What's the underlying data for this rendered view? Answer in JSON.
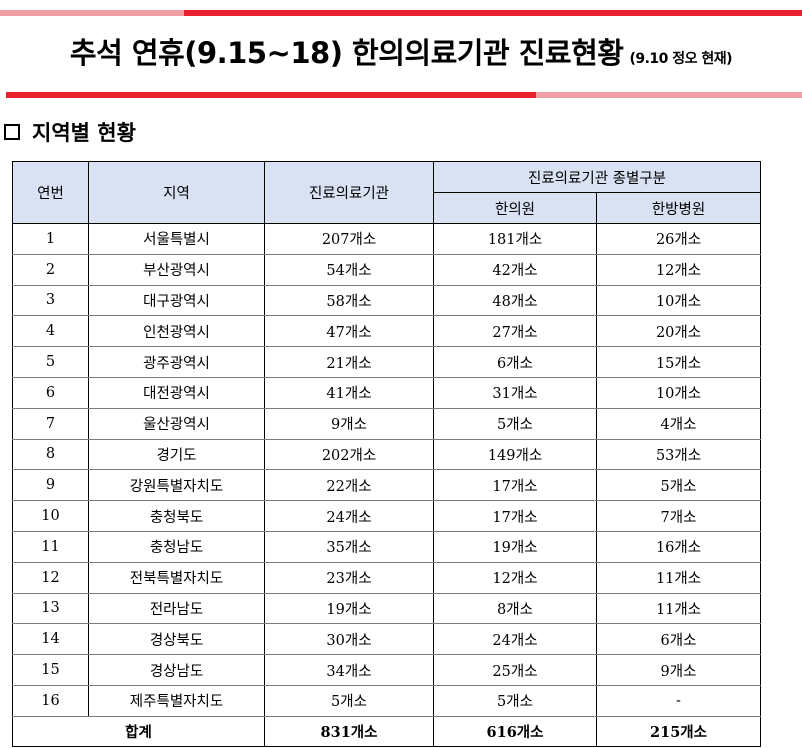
{
  "header": {
    "title": "추석 연휴(9.15~18) 한의의료기관 진료현황",
    "subtitle": "(9.10 정오 현재)",
    "accent_color": "#e8212f",
    "accent_light_color": "#f0a0a5"
  },
  "section": {
    "bullet_icon": "square-outline-icon",
    "heading": "지역별 현황"
  },
  "table": {
    "header_bg": "#d9e2f2",
    "columns": {
      "no": "연번",
      "region": "지역",
      "institutions": "진료의료기관",
      "group": "진료의료기관 종별구분",
      "clinic": "한의원",
      "hospital": "한방병원"
    },
    "rows": [
      {
        "no": "1",
        "region": "서울특별시",
        "institutions": "207개소",
        "clinic": "181개소",
        "hospital": "26개소"
      },
      {
        "no": "2",
        "region": "부산광역시",
        "institutions": "54개소",
        "clinic": "42개소",
        "hospital": "12개소"
      },
      {
        "no": "3",
        "region": "대구광역시",
        "institutions": "58개소",
        "clinic": "48개소",
        "hospital": "10개소"
      },
      {
        "no": "4",
        "region": "인천광역시",
        "institutions": "47개소",
        "clinic": "27개소",
        "hospital": "20개소"
      },
      {
        "no": "5",
        "region": "광주광역시",
        "institutions": "21개소",
        "clinic": "6개소",
        "hospital": "15개소"
      },
      {
        "no": "6",
        "region": "대전광역시",
        "institutions": "41개소",
        "clinic": "31개소",
        "hospital": "10개소"
      },
      {
        "no": "7",
        "region": "울산광역시",
        "institutions": "9개소",
        "clinic": "5개소",
        "hospital": "4개소"
      },
      {
        "no": "8",
        "region": "경기도",
        "institutions": "202개소",
        "clinic": "149개소",
        "hospital": "53개소"
      },
      {
        "no": "9",
        "region": "강원특별자치도",
        "institutions": "22개소",
        "clinic": "17개소",
        "hospital": "5개소"
      },
      {
        "no": "10",
        "region": "충청북도",
        "institutions": "24개소",
        "clinic": "17개소",
        "hospital": "7개소"
      },
      {
        "no": "11",
        "region": "충청남도",
        "institutions": "35개소",
        "clinic": "19개소",
        "hospital": "16개소"
      },
      {
        "no": "12",
        "region": "전북특별자치도",
        "institutions": "23개소",
        "clinic": "12개소",
        "hospital": "11개소"
      },
      {
        "no": "13",
        "region": "전라남도",
        "institutions": "19개소",
        "clinic": "8개소",
        "hospital": "11개소"
      },
      {
        "no": "14",
        "region": "경상북도",
        "institutions": "30개소",
        "clinic": "24개소",
        "hospital": "6개소"
      },
      {
        "no": "15",
        "region": "경상남도",
        "institutions": "34개소",
        "clinic": "25개소",
        "hospital": "9개소"
      },
      {
        "no": "16",
        "region": "제주특별자치도",
        "institutions": "5개소",
        "clinic": "5개소",
        "hospital": "-"
      }
    ],
    "total": {
      "label": "합계",
      "institutions": "831개소",
      "clinic": "616개소",
      "hospital": "215개소"
    }
  }
}
